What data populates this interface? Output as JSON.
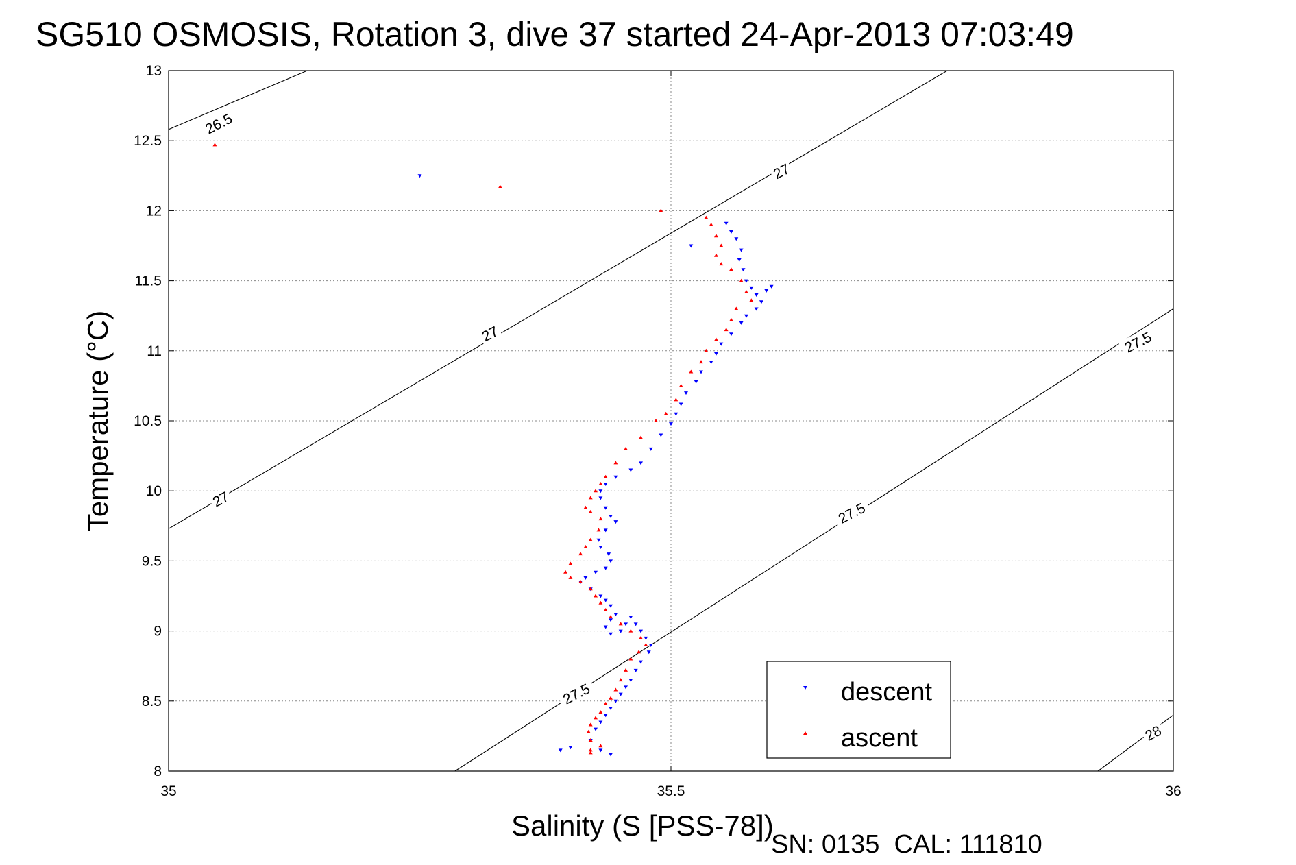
{
  "chart_data": {
    "type": "scatter",
    "title": "SG510 OSMOSIS, Rotation 3, dive 37 started 24-Apr-2013 07:03:49",
    "xlabel": "Salinity (S [PSS-78])",
    "ylabel": "Temperature (°C)",
    "xlim": [
      35,
      36
    ],
    "ylim": [
      8,
      13
    ],
    "xticks": [
      35,
      35.5,
      36
    ],
    "xtick_labels": [
      "35",
      "35.5",
      "36"
    ],
    "yticks": [
      8,
      8.5,
      9,
      9.5,
      10,
      10.5,
      11,
      11.5,
      12,
      12.5,
      13
    ],
    "ytick_labels": [
      "8",
      "8.5",
      "9",
      "9.5",
      "10",
      "10.5",
      "11",
      "11.5",
      "12",
      "12.5",
      "13"
    ],
    "grid": true,
    "legend_position": "bottom-right",
    "footer": "SN: 0135  CAL: 111810",
    "density_contours": [
      {
        "label": "26.5",
        "points": [
          [
            35.0,
            12.58
          ],
          [
            35.138,
            13.0
          ]
        ]
      },
      {
        "label": "27",
        "points": [
          [
            35.0,
            9.73
          ],
          [
            35.775,
            13.0
          ]
        ]
      },
      {
        "label": "27.5",
        "points": [
          [
            35.285,
            8.0
          ],
          [
            36.0,
            11.3
          ]
        ]
      },
      {
        "label": "28",
        "points": [
          [
            35.925,
            8.0
          ],
          [
            36.0,
            8.4
          ]
        ]
      }
    ],
    "contour_labels": [
      {
        "text": "26.5",
        "x": 35.05,
        "y": 12.62
      },
      {
        "text": "27",
        "x": 35.32,
        "y": 11.12
      },
      {
        "text": "27",
        "x": 35.61,
        "y": 12.28
      },
      {
        "text": "27",
        "x": 35.052,
        "y": 9.94
      },
      {
        "text": "27.5",
        "x": 35.68,
        "y": 9.84
      },
      {
        "text": "27.5",
        "x": 35.965,
        "y": 11.06
      },
      {
        "text": "27.5",
        "x": 35.406,
        "y": 8.55
      },
      {
        "text": "28",
        "x": 35.98,
        "y": 8.27
      }
    ],
    "series": [
      {
        "name": "descent",
        "color": "#0000ff",
        "marker": "triangle-down",
        "x": [
          35.555,
          35.56,
          35.565,
          35.57,
          35.568,
          35.572,
          35.575,
          35.58,
          35.585,
          35.59,
          35.595,
          35.6,
          35.585,
          35.575,
          35.57,
          35.56,
          35.55,
          35.545,
          35.54,
          35.53,
          35.525,
          35.515,
          35.51,
          35.505,
          35.5,
          35.49,
          35.48,
          35.47,
          35.46,
          35.445,
          35.435,
          35.43,
          35.43,
          35.435,
          35.44,
          35.445,
          35.435,
          35.428,
          35.43,
          35.438,
          35.44,
          35.435,
          35.425,
          35.415,
          35.41,
          35.42,
          35.43,
          35.435,
          35.44,
          35.445,
          35.44,
          35.435,
          35.44,
          35.45,
          35.455,
          35.46,
          35.465,
          35.47,
          35.475,
          35.48,
          35.478,
          35.47,
          35.465,
          35.46,
          35.455,
          35.45,
          35.445,
          35.44,
          35.435,
          35.43,
          35.425,
          35.42,
          35.43,
          35.44,
          35.39,
          35.4,
          35.52,
          35.25
        ],
        "y": [
          11.91,
          11.85,
          11.8,
          11.72,
          11.65,
          11.58,
          11.5,
          11.45,
          11.4,
          11.35,
          11.43,
          11.46,
          11.3,
          11.25,
          11.2,
          11.12,
          11.05,
          10.98,
          10.92,
          10.85,
          10.78,
          10.7,
          10.62,
          10.55,
          10.48,
          10.4,
          10.3,
          10.2,
          10.15,
          10.1,
          10.05,
          10.0,
          9.95,
          9.88,
          9.82,
          9.78,
          9.72,
          9.65,
          9.6,
          9.55,
          9.5,
          9.45,
          9.42,
          9.38,
          9.35,
          9.3,
          9.25,
          9.22,
          9.18,
          9.12,
          9.08,
          9.03,
          8.98,
          9.0,
          9.05,
          9.1,
          9.05,
          9.0,
          8.95,
          8.9,
          8.85,
          8.78,
          8.72,
          8.65,
          8.6,
          8.55,
          8.5,
          8.45,
          8.4,
          8.35,
          8.3,
          8.22,
          8.15,
          8.12,
          8.15,
          8.17,
          11.75,
          12.25
        ]
      },
      {
        "name": "ascent",
        "color": "#ff0000",
        "marker": "triangle-up",
        "x": [
          35.535,
          35.54,
          35.545,
          35.55,
          35.545,
          35.55,
          35.56,
          35.57,
          35.575,
          35.58,
          35.565,
          35.56,
          35.555,
          35.545,
          35.535,
          35.53,
          35.52,
          35.51,
          35.505,
          35.495,
          35.485,
          35.47,
          35.455,
          35.445,
          35.435,
          35.43,
          35.425,
          35.42,
          35.415,
          35.42,
          35.43,
          35.428,
          35.42,
          35.415,
          35.41,
          35.4,
          35.395,
          35.4,
          35.41,
          35.42,
          35.425,
          35.43,
          35.435,
          35.44,
          35.45,
          35.46,
          35.47,
          35.475,
          35.468,
          35.46,
          35.455,
          35.45,
          35.445,
          35.44,
          35.435,
          35.43,
          35.425,
          35.42,
          35.418,
          35.42,
          35.43,
          35.42,
          35.42,
          35.046,
          35.33,
          35.49
        ],
        "y": [
          11.95,
          11.9,
          11.82,
          11.75,
          11.68,
          11.62,
          11.58,
          11.5,
          11.42,
          11.36,
          11.3,
          11.22,
          11.15,
          11.08,
          11.0,
          10.92,
          10.85,
          10.75,
          10.65,
          10.55,
          10.5,
          10.38,
          10.3,
          10.2,
          10.1,
          10.05,
          10.0,
          9.95,
          9.88,
          9.85,
          9.8,
          9.72,
          9.65,
          9.6,
          9.55,
          9.48,
          9.42,
          9.38,
          9.35,
          9.3,
          9.25,
          9.2,
          9.15,
          9.1,
          9.05,
          9.0,
          8.95,
          8.9,
          8.85,
          8.8,
          8.72,
          8.65,
          8.58,
          8.52,
          8.48,
          8.42,
          8.38,
          8.33,
          8.28,
          8.22,
          8.18,
          8.15,
          8.13,
          12.47,
          12.17,
          12.0
        ]
      }
    ]
  }
}
